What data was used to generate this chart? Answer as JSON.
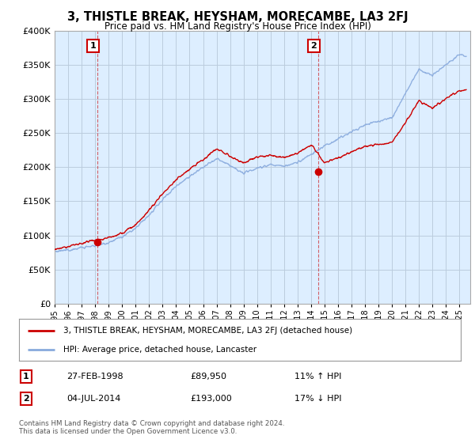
{
  "title": "3, THISTLE BREAK, HEYSHAM, MORECAMBE, LA3 2FJ",
  "subtitle": "Price paid vs. HM Land Registry's House Price Index (HPI)",
  "legend_line1": "3, THISTLE BREAK, HEYSHAM, MORECAMBE, LA3 2FJ (detached house)",
  "legend_line2": "HPI: Average price, detached house, Lancaster",
  "table_rows": [
    {
      "num": "1",
      "date": "27-FEB-1998",
      "price": "£89,950",
      "hpi": "11% ↑ HPI"
    },
    {
      "num": "2",
      "date": "04-JUL-2014",
      "price": "£193,000",
      "hpi": "17% ↓ HPI"
    }
  ],
  "footer": "Contains HM Land Registry data © Crown copyright and database right 2024.\nThis data is licensed under the Open Government Licence v3.0.",
  "sale_color": "#cc0000",
  "hpi_color": "#88aadd",
  "chart_bg": "#ddeeff",
  "sale_dates": [
    1998.15,
    2014.51
  ],
  "sale_prices": [
    89950,
    193000
  ],
  "annotation_labels": [
    "1",
    "2"
  ],
  "ylim": [
    0,
    400000
  ],
  "yticks": [
    0,
    50000,
    100000,
    150000,
    200000,
    250000,
    300000,
    350000,
    400000
  ],
  "xlabel_years": [
    "1995",
    "1996",
    "1997",
    "1998",
    "1999",
    "2000",
    "2001",
    "2002",
    "2003",
    "2004",
    "2005",
    "2006",
    "2007",
    "2008",
    "2009",
    "2010",
    "2011",
    "2012",
    "2013",
    "2014",
    "2015",
    "2016",
    "2017",
    "2018",
    "2019",
    "2020",
    "2021",
    "2022",
    "2023",
    "2024",
    "2025"
  ],
  "background_color": "#ffffff",
  "grid_color": "#bbccdd"
}
